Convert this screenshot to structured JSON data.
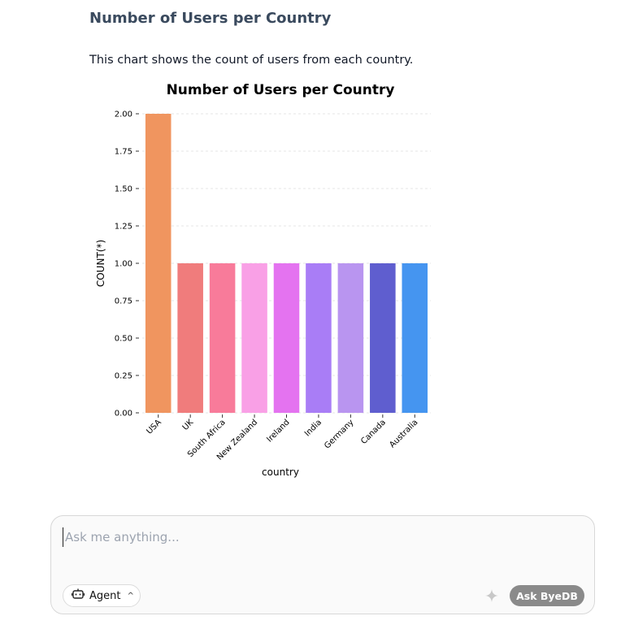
{
  "message": {
    "heading": "Number of Users per Country",
    "description": "This chart shows the count of users from each country."
  },
  "chart_data": {
    "type": "bar",
    "title": "Number of Users per Country",
    "xlabel": "country",
    "ylabel": "COUNT(*)",
    "categories": [
      "USA",
      "UK",
      "South Africa",
      "New Zealand",
      "Ireland",
      "India",
      "Germany",
      "Canada",
      "Australia"
    ],
    "values": [
      2,
      1,
      1,
      1,
      1,
      1,
      1,
      1,
      1
    ],
    "colors": [
      "#f0955f",
      "#f07c7c",
      "#f87b9a",
      "#f9a0e6",
      "#e473f0",
      "#a97df6",
      "#b995f0",
      "#5f5ecf",
      "#4595f0"
    ],
    "ylim": [
      0,
      2.0
    ],
    "yticks": [
      "0.00",
      "0.25",
      "0.50",
      "0.75",
      "1.00",
      "1.25",
      "1.50",
      "1.75",
      "2.00"
    ],
    "grid": true
  },
  "composer": {
    "placeholder": "Ask me anything...",
    "agent_label": "Agent",
    "agent_icon": "robot-icon",
    "sparkle_icon": "sparkle-icon",
    "ask_label": "Ask ByeDB"
  }
}
